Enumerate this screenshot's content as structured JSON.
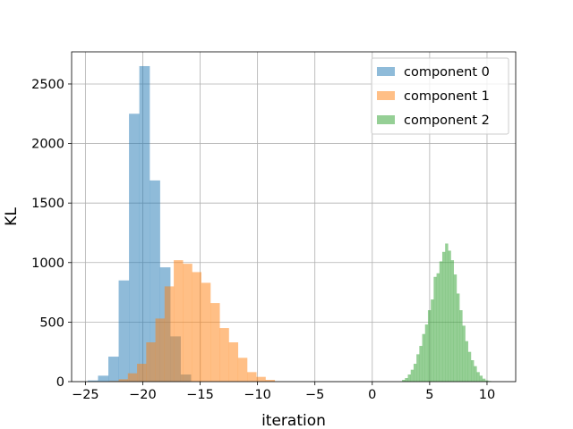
{
  "chart_data": {
    "type": "bar",
    "subtype": "histogram",
    "title": "",
    "xlabel": "iteration",
    "ylabel": "KL",
    "xlim": [
      -26.2,
      12.5
    ],
    "ylim": [
      0,
      2770
    ],
    "xticks": [
      -25,
      -20,
      -15,
      -10,
      -5,
      0,
      5,
      10
    ],
    "xtick_labels": [
      "−25",
      "−20",
      "−15",
      "−10",
      "−5",
      "0",
      "5",
      "10"
    ],
    "yticks": [
      0,
      500,
      1000,
      1500,
      2000,
      2500
    ],
    "ytick_labels": [
      "0",
      "500",
      "1000",
      "1500",
      "2000",
      "2500"
    ],
    "grid": true,
    "legend_position": "top-right",
    "series": [
      {
        "name": "component 0",
        "color": "#1f77b4",
        "opacity": 0.5,
        "bin_edges": [
          -24.8,
          -23.9,
          -23.0,
          -22.1,
          -21.2,
          -20.3,
          -19.4,
          -18.5,
          -17.6,
          -16.7,
          -15.8
        ],
        "counts": [
          10,
          50,
          210,
          850,
          2250,
          2650,
          1690,
          960,
          380,
          60
        ]
      },
      {
        "name": "component 1",
        "color": "#ff7f0e",
        "opacity": 0.5,
        "bin_edges": [
          -22.9,
          -22.1,
          -21.3,
          -20.5,
          -19.7,
          -18.9,
          -18.1,
          -17.3,
          -16.5,
          -15.7,
          -14.9,
          -14.1,
          -13.3,
          -12.5,
          -11.7,
          -10.9,
          -10.1,
          -9.3,
          -8.5
        ],
        "counts": [
          5,
          20,
          70,
          150,
          330,
          530,
          800,
          1020,
          990,
          920,
          830,
          660,
          450,
          330,
          200,
          80,
          40,
          15
        ]
      },
      {
        "name": "component 2",
        "color": "#2ca02c",
        "opacity": 0.5,
        "bin_edges": [
          2.6,
          2.85,
          3.1,
          3.35,
          3.6,
          3.85,
          4.1,
          4.35,
          4.6,
          4.85,
          5.1,
          5.35,
          5.6,
          5.85,
          6.1,
          6.35,
          6.6,
          6.85,
          7.1,
          7.35,
          7.6,
          7.85,
          8.1,
          8.35,
          8.6,
          8.85,
          9.1,
          9.35,
          9.6,
          9.85,
          10.1,
          10.35
        ],
        "counts": [
          15,
          30,
          60,
          100,
          150,
          230,
          300,
          400,
          480,
          600,
          690,
          880,
          910,
          1010,
          1090,
          1160,
          1100,
          1020,
          900,
          740,
          600,
          470,
          340,
          250,
          180,
          130,
          80,
          50,
          25,
          10,
          5
        ]
      }
    ]
  }
}
